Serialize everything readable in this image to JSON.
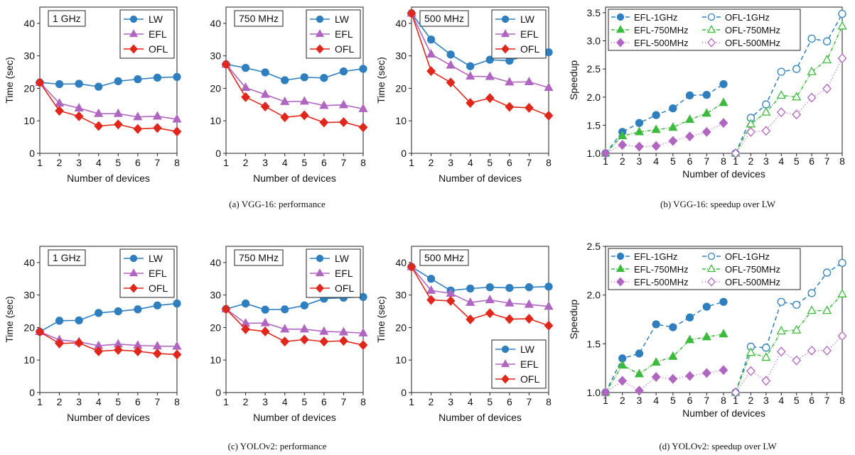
{
  "colors": {
    "LW": "#2f7fbf",
    "EFL": "#b066c0",
    "OFL": "#e0271c",
    "1GHz": "#2f7fbf",
    "750MHz": "#3dba3d",
    "500MHz": "#b066c0"
  },
  "captions": {
    "a": "(a) VGG-16: performance",
    "b": "(b) VGG-16: speedup over LW",
    "c": "(c) YOLOv2: performance",
    "d": "(d) YOLOv2: speedup over LW"
  },
  "chart_data": [
    {
      "id": "vgg-1ghz",
      "type": "line",
      "title": "1 GHz",
      "xlabel": "Number of devices",
      "ylabel": "Time (sec)",
      "xlim": [
        1,
        8
      ],
      "ylim": [
        0,
        45
      ],
      "yticks": [
        0,
        10,
        20,
        30,
        40
      ],
      "x": [
        1,
        2,
        3,
        4,
        5,
        6,
        7,
        8
      ],
      "legend": "top-right",
      "series": [
        {
          "name": "LW",
          "marker": "circle",
          "values": [
            21.8,
            21.3,
            21.4,
            20.5,
            22.2,
            22.8,
            23.3,
            23.5
          ]
        },
        {
          "name": "EFL",
          "marker": "triangle",
          "values": [
            21.8,
            15.4,
            13.9,
            12.2,
            12.2,
            11.2,
            11.4,
            10.5
          ]
        },
        {
          "name": "OFL",
          "marker": "diamond",
          "values": [
            21.8,
            13.1,
            11.4,
            8.4,
            8.9,
            7.5,
            7.8,
            6.7
          ]
        }
      ]
    },
    {
      "id": "vgg-750mhz",
      "type": "line",
      "title": "750 MHz",
      "xlabel": "Number of devices",
      "ylabel": "",
      "xlim": [
        1,
        8
      ],
      "ylim": [
        0,
        45
      ],
      "yticks": [
        0,
        10,
        20,
        30,
        40
      ],
      "x": [
        1,
        2,
        3,
        4,
        5,
        6,
        7,
        8
      ],
      "legend": "top-right",
      "series": [
        {
          "name": "LW",
          "marker": "circle",
          "values": [
            27.4,
            26.3,
            24.9,
            22.5,
            23.4,
            23.2,
            25.2,
            26.0
          ]
        },
        {
          "name": "EFL",
          "marker": "triangle",
          "values": [
            27.4,
            20.2,
            18.1,
            15.9,
            16.0,
            14.7,
            14.9,
            13.7
          ]
        },
        {
          "name": "OFL",
          "marker": "diamond",
          "values": [
            27.4,
            17.3,
            14.4,
            11.1,
            11.7,
            9.5,
            9.6,
            8.0
          ]
        }
      ]
    },
    {
      "id": "vgg-500mhz",
      "type": "line",
      "title": "500 MHz",
      "xlabel": "Number of devices",
      "ylabel": "Time (sec)",
      "xlim": [
        1,
        8
      ],
      "ylim": [
        0,
        45
      ],
      "yticks": [
        0,
        10,
        20,
        30,
        40
      ],
      "x": [
        1,
        2,
        3,
        4,
        5,
        6,
        7,
        8
      ],
      "legend": "top-right",
      "series": [
        {
          "name": "LW",
          "marker": "circle",
          "values": [
            43.1,
            35.0,
            30.4,
            26.8,
            28.8,
            28.5,
            30.4,
            31.1
          ]
        },
        {
          "name": "EFL",
          "marker": "triangle",
          "values": [
            43.1,
            30.5,
            27.1,
            23.7,
            23.6,
            21.9,
            22.0,
            20.2
          ]
        },
        {
          "name": "OFL",
          "marker": "diamond",
          "values": [
            43.1,
            25.3,
            21.8,
            15.5,
            17.0,
            14.3,
            14.0,
            11.6
          ]
        }
      ]
    },
    {
      "id": "vgg-speedup",
      "type": "line",
      "xlabel": "Number of devices",
      "ylabel": "Speedup",
      "ylim": [
        1.0,
        3.6
      ],
      "yticks": [
        1.0,
        1.5,
        2.0,
        2.5,
        3.0,
        3.5
      ],
      "x": [
        1,
        2,
        3,
        4,
        5,
        6,
        7,
        8
      ],
      "legend": "top",
      "series": [
        {
          "name": "EFL-1GHz",
          "group": "EFL",
          "freq": "1GHz",
          "marker": "circle",
          "dash": "6,4",
          "values": [
            1.0,
            1.38,
            1.54,
            1.68,
            1.8,
            2.03,
            2.04,
            2.23
          ]
        },
        {
          "name": "OFL-1GHz",
          "group": "OFL",
          "freq": "1GHz",
          "marker": "circle",
          "dash": "6,4",
          "values": [
            1.0,
            1.63,
            1.87,
            2.45,
            2.5,
            3.04,
            2.99,
            3.48
          ]
        },
        {
          "name": "EFL-750MHz",
          "group": "EFL",
          "freq": "750MHz",
          "marker": "triangle",
          "dash": "5,2,1,2",
          "values": [
            1.0,
            1.31,
            1.38,
            1.42,
            1.46,
            1.6,
            1.71,
            1.9
          ]
        },
        {
          "name": "OFL-750MHz",
          "group": "OFL",
          "freq": "750MHz",
          "marker": "triangle",
          "dash": "5,2,1,2",
          "values": [
            1.0,
            1.52,
            1.73,
            2.03,
            2.0,
            2.45,
            2.66,
            3.26
          ]
        },
        {
          "name": "EFL-500MHz",
          "group": "EFL",
          "freq": "500MHz",
          "marker": "diamond",
          "dash": "1,3",
          "values": [
            1.0,
            1.15,
            1.12,
            1.13,
            1.22,
            1.3,
            1.38,
            1.54
          ]
        },
        {
          "name": "OFL-500MHz",
          "group": "OFL",
          "freq": "500MHz",
          "marker": "diamond",
          "dash": "1,3",
          "values": [
            1.0,
            1.38,
            1.4,
            1.73,
            1.69,
            1.99,
            2.15,
            2.69
          ]
        }
      ]
    },
    {
      "id": "yolo-1ghz",
      "type": "line",
      "title": "1 GHz",
      "xlabel": "Number of devices",
      "ylabel": "Time (sec)",
      "xlim": [
        1,
        8
      ],
      "ylim": [
        0,
        45
      ],
      "yticks": [
        0,
        10,
        20,
        30,
        40
      ],
      "x": [
        1,
        2,
        3,
        4,
        5,
        6,
        7,
        8
      ],
      "legend": "top-right",
      "series": [
        {
          "name": "LW",
          "marker": "circle",
          "values": [
            18.7,
            22.1,
            22.2,
            24.5,
            25.0,
            25.6,
            26.8,
            27.4
          ]
        },
        {
          "name": "EFL",
          "marker": "triangle",
          "values": [
            18.7,
            16.2,
            15.6,
            14.4,
            14.9,
            14.5,
            14.3,
            14.2
          ]
        },
        {
          "name": "OFL",
          "marker": "diamond",
          "values": [
            18.7,
            15.1,
            15.3,
            12.7,
            13.1,
            12.7,
            12.0,
            11.7
          ]
        }
      ]
    },
    {
      "id": "yolo-750mhz",
      "type": "line",
      "title": "750 MHz",
      "xlabel": "Number of devices",
      "ylabel": "",
      "xlim": [
        1,
        8
      ],
      "ylim": [
        0,
        45
      ],
      "yticks": [
        0,
        10,
        20,
        30,
        40
      ],
      "x": [
        1,
        2,
        3,
        4,
        5,
        6,
        7,
        8
      ],
      "legend": "top-right",
      "series": [
        {
          "name": "LW",
          "marker": "circle",
          "values": [
            25.7,
            27.4,
            25.5,
            25.6,
            26.8,
            28.9,
            29.2,
            29.4
          ]
        },
        {
          "name": "EFL",
          "marker": "triangle",
          "values": [
            25.7,
            21.3,
            21.4,
            19.5,
            19.5,
            18.8,
            18.6,
            18.3
          ]
        },
        {
          "name": "OFL",
          "marker": "diamond",
          "values": [
            25.7,
            19.5,
            18.8,
            15.7,
            16.3,
            15.7,
            15.9,
            14.6
          ]
        }
      ]
    },
    {
      "id": "yolo-500mhz",
      "type": "line",
      "title": "500 MHz",
      "xlabel": "Number of devices",
      "ylabel": "Time (sec)",
      "xlim": [
        1,
        8
      ],
      "ylim": [
        0,
        45
      ],
      "yticks": [
        0,
        10,
        20,
        30,
        40
      ],
      "x": [
        1,
        2,
        3,
        4,
        5,
        6,
        7,
        8
      ],
      "legend": "bottom-right",
      "series": [
        {
          "name": "LW",
          "marker": "circle",
          "values": [
            38.7,
            35.0,
            31.4,
            32.0,
            32.4,
            32.2,
            32.4,
            32.6
          ]
        },
        {
          "name": "EFL",
          "marker": "triangle",
          "values": [
            38.7,
            31.4,
            30.5,
            27.7,
            28.5,
            27.5,
            27.1,
            26.5
          ]
        },
        {
          "name": "OFL",
          "marker": "diamond",
          "values": [
            38.7,
            28.5,
            28.2,
            22.5,
            24.4,
            22.6,
            22.7,
            20.6
          ]
        }
      ]
    },
    {
      "id": "yolo-speedup",
      "type": "line",
      "xlabel": "Number of devices",
      "ylabel": "Speedup",
      "ylim": [
        1.0,
        2.5
      ],
      "yticks": [
        1.0,
        1.5,
        2.0,
        2.5
      ],
      "x": [
        1,
        2,
        3,
        4,
        5,
        6,
        7,
        8
      ],
      "legend": "top",
      "series": [
        {
          "name": "EFL-1GHz",
          "group": "EFL",
          "freq": "1GHz",
          "marker": "circle",
          "dash": "6,4",
          "values": [
            1.0,
            1.35,
            1.4,
            1.7,
            1.67,
            1.77,
            1.88,
            1.93
          ]
        },
        {
          "name": "OFL-1GHz",
          "group": "OFL",
          "freq": "1GHz",
          "marker": "circle",
          "dash": "6,4",
          "values": [
            1.0,
            1.47,
            1.46,
            1.93,
            1.9,
            2.02,
            2.23,
            2.33
          ]
        },
        {
          "name": "EFL-750MHz",
          "group": "EFL",
          "freq": "750MHz",
          "marker": "triangle",
          "dash": "5,2,1,2",
          "values": [
            1.0,
            1.28,
            1.19,
            1.31,
            1.37,
            1.54,
            1.57,
            1.6
          ]
        },
        {
          "name": "OFL-750MHz",
          "group": "OFL",
          "freq": "750MHz",
          "marker": "triangle",
          "dash": "5,2,1,2",
          "values": [
            1.0,
            1.41,
            1.36,
            1.63,
            1.64,
            1.84,
            1.84,
            2.01
          ]
        },
        {
          "name": "EFL-500MHz",
          "group": "EFL",
          "freq": "500MHz",
          "marker": "diamond",
          "dash": "1,3",
          "values": [
            1.0,
            1.12,
            1.02,
            1.16,
            1.14,
            1.17,
            1.2,
            1.23
          ]
        },
        {
          "name": "OFL-500MHz",
          "group": "OFL",
          "freq": "500MHz",
          "marker": "diamond",
          "dash": "1,3",
          "values": [
            1.0,
            1.22,
            1.12,
            1.42,
            1.33,
            1.43,
            1.43,
            1.58
          ]
        }
      ]
    }
  ]
}
